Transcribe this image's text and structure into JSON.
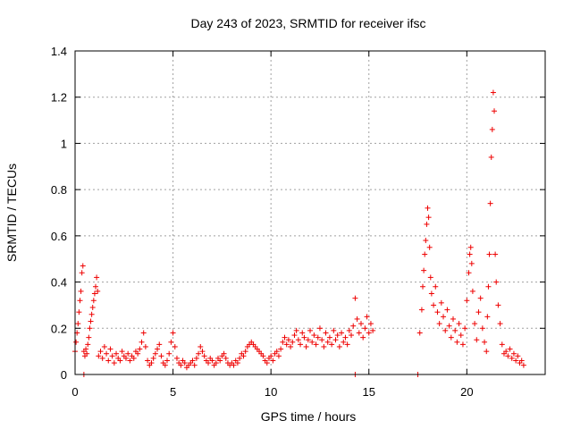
{
  "chart_data": {
    "type": "scatter",
    "title": "Day 243 of 2023, SRMTID for receiver ifsc",
    "xlabel": "GPS time / hours",
    "ylabel": "SRMTID / TECUs",
    "xlim": [
      0,
      24
    ],
    "ylim": [
      0,
      1.4
    ],
    "x_ticks": [
      0,
      5,
      10,
      15,
      20
    ],
    "x_tick_labels": [
      "0",
      "5",
      "10",
      "15",
      "20"
    ],
    "y_ticks": [
      0,
      0.2,
      0.4,
      0.6,
      0.8,
      1.0,
      1.2,
      1.4
    ],
    "y_tick_labels": [
      "0",
      "0.2",
      "0.4",
      "0.6",
      "0.8",
      "1",
      "1.2",
      "1.4"
    ],
    "grid": true,
    "marker": "+",
    "series": [
      {
        "name": "SRMTID",
        "color": "#ee0000",
        "points": [
          [
            0.0,
            0.1
          ],
          [
            0.05,
            0.14
          ],
          [
            0.1,
            0.18
          ],
          [
            0.15,
            0.22
          ],
          [
            0.2,
            0.27
          ],
          [
            0.25,
            0.32
          ],
          [
            0.3,
            0.36
          ],
          [
            0.35,
            0.44
          ],
          [
            0.4,
            0.47
          ],
          [
            0.45,
            0.1
          ],
          [
            0.5,
            0.08
          ],
          [
            0.55,
            0.11
          ],
          [
            0.6,
            0.09
          ],
          [
            0.65,
            0.13
          ],
          [
            0.7,
            0.16
          ],
          [
            0.75,
            0.2
          ],
          [
            0.8,
            0.23
          ],
          [
            0.85,
            0.26
          ],
          [
            0.9,
            0.29
          ],
          [
            0.95,
            0.32
          ],
          [
            1.0,
            0.35
          ],
          [
            1.05,
            0.38
          ],
          [
            1.1,
            0.42
          ],
          [
            1.15,
            0.36
          ],
          [
            1.2,
            0.08
          ],
          [
            1.3,
            0.1
          ],
          [
            1.4,
            0.07
          ],
          [
            1.5,
            0.12
          ],
          [
            1.6,
            0.09
          ],
          [
            1.7,
            0.06
          ],
          [
            1.8,
            0.11
          ],
          [
            1.9,
            0.08
          ],
          [
            2.0,
            0.05
          ],
          [
            2.1,
            0.09
          ],
          [
            2.2,
            0.07
          ],
          [
            2.3,
            0.06
          ],
          [
            2.4,
            0.1
          ],
          [
            2.5,
            0.08
          ],
          [
            2.6,
            0.07
          ],
          [
            2.7,
            0.09
          ],
          [
            2.8,
            0.06
          ],
          [
            2.9,
            0.08
          ],
          [
            3.0,
            0.07
          ],
          [
            3.1,
            0.1
          ],
          [
            3.2,
            0.09
          ],
          [
            3.3,
            0.11
          ],
          [
            3.4,
            0.14
          ],
          [
            3.5,
            0.18
          ],
          [
            3.6,
            0.12
          ],
          [
            3.7,
            0.06
          ],
          [
            3.8,
            0.04
          ],
          [
            3.9,
            0.05
          ],
          [
            4.0,
            0.07
          ],
          [
            4.1,
            0.09
          ],
          [
            4.2,
            0.11
          ],
          [
            4.3,
            0.13
          ],
          [
            4.4,
            0.08
          ],
          [
            4.5,
            0.05
          ],
          [
            4.6,
            0.04
          ],
          [
            4.7,
            0.06
          ],
          [
            4.8,
            0.09
          ],
          [
            4.9,
            0.14
          ],
          [
            5.0,
            0.18
          ],
          [
            5.1,
            0.12
          ],
          [
            5.2,
            0.07
          ],
          [
            5.3,
            0.05
          ],
          [
            5.4,
            0.04
          ],
          [
            5.5,
            0.06
          ],
          [
            5.6,
            0.05
          ],
          [
            5.7,
            0.03
          ],
          [
            5.8,
            0.04
          ],
          [
            5.9,
            0.05
          ],
          [
            6.0,
            0.06
          ],
          [
            6.1,
            0.04
          ],
          [
            6.2,
            0.07
          ],
          [
            6.3,
            0.09
          ],
          [
            6.4,
            0.12
          ],
          [
            6.5,
            0.1
          ],
          [
            6.6,
            0.08
          ],
          [
            6.7,
            0.06
          ],
          [
            6.8,
            0.05
          ],
          [
            6.9,
            0.07
          ],
          [
            7.0,
            0.06
          ],
          [
            7.1,
            0.04
          ],
          [
            7.2,
            0.05
          ],
          [
            7.3,
            0.07
          ],
          [
            7.4,
            0.06
          ],
          [
            7.5,
            0.08
          ],
          [
            7.6,
            0.09
          ],
          [
            7.7,
            0.07
          ],
          [
            7.8,
            0.05
          ],
          [
            7.9,
            0.04
          ],
          [
            8.0,
            0.05
          ],
          [
            8.1,
            0.04
          ],
          [
            8.2,
            0.06
          ],
          [
            8.3,
            0.05
          ],
          [
            8.4,
            0.07
          ],
          [
            8.5,
            0.09
          ],
          [
            8.6,
            0.08
          ],
          [
            8.7,
            0.1
          ],
          [
            8.8,
            0.12
          ],
          [
            8.9,
            0.13
          ],
          [
            9.0,
            0.14
          ],
          [
            9.1,
            0.13
          ],
          [
            9.2,
            0.12
          ],
          [
            9.3,
            0.11
          ],
          [
            9.4,
            0.1
          ],
          [
            9.5,
            0.09
          ],
          [
            9.6,
            0.08
          ],
          [
            9.7,
            0.06
          ],
          [
            9.8,
            0.05
          ],
          [
            9.9,
            0.07
          ],
          [
            10.0,
            0.08
          ],
          [
            10.1,
            0.06
          ],
          [
            10.2,
            0.09
          ],
          [
            10.3,
            0.1
          ],
          [
            10.4,
            0.08
          ],
          [
            10.5,
            0.11
          ],
          [
            10.6,
            0.14
          ],
          [
            10.7,
            0.16
          ],
          [
            10.8,
            0.13
          ],
          [
            10.9,
            0.15
          ],
          [
            11.0,
            0.12
          ],
          [
            11.1,
            0.14
          ],
          [
            11.2,
            0.17
          ],
          [
            11.3,
            0.19
          ],
          [
            11.4,
            0.15
          ],
          [
            11.5,
            0.13
          ],
          [
            11.6,
            0.18
          ],
          [
            11.7,
            0.16
          ],
          [
            11.8,
            0.12
          ],
          [
            11.9,
            0.15
          ],
          [
            12.0,
            0.19
          ],
          [
            12.1,
            0.14
          ],
          [
            12.2,
            0.17
          ],
          [
            12.3,
            0.13
          ],
          [
            12.4,
            0.16
          ],
          [
            12.5,
            0.2
          ],
          [
            12.6,
            0.15
          ],
          [
            12.7,
            0.12
          ],
          [
            12.8,
            0.18
          ],
          [
            12.9,
            0.14
          ],
          [
            13.0,
            0.16
          ],
          [
            13.1,
            0.13
          ],
          [
            13.2,
            0.19
          ],
          [
            13.3,
            0.15
          ],
          [
            13.4,
            0.17
          ],
          [
            13.5,
            0.12
          ],
          [
            13.6,
            0.18
          ],
          [
            13.7,
            0.14
          ],
          [
            13.8,
            0.16
          ],
          [
            13.9,
            0.13
          ],
          [
            14.0,
            0.19
          ],
          [
            14.1,
            0.17
          ],
          [
            14.2,
            0.21
          ],
          [
            14.3,
            0.33
          ],
          [
            14.4,
            0.24
          ],
          [
            14.5,
            0.18
          ],
          [
            14.6,
            0.22
          ],
          [
            14.7,
            0.16
          ],
          [
            14.8,
            0.2
          ],
          [
            14.9,
            0.25
          ],
          [
            15.0,
            0.18
          ],
          [
            15.1,
            0.22
          ],
          [
            15.2,
            0.19
          ],
          [
            17.6,
            0.18
          ],
          [
            17.7,
            0.28
          ],
          [
            17.75,
            0.38
          ],
          [
            17.8,
            0.45
          ],
          [
            17.85,
            0.52
          ],
          [
            17.9,
            0.58
          ],
          [
            17.95,
            0.65
          ],
          [
            18.0,
            0.72
          ],
          [
            18.05,
            0.68
          ],
          [
            18.1,
            0.55
          ],
          [
            18.15,
            0.42
          ],
          [
            18.2,
            0.35
          ],
          [
            18.3,
            0.3
          ],
          [
            18.4,
            0.38
          ],
          [
            18.5,
            0.27
          ],
          [
            18.6,
            0.22
          ],
          [
            18.7,
            0.31
          ],
          [
            18.8,
            0.25
          ],
          [
            18.9,
            0.19
          ],
          [
            19.0,
            0.28
          ],
          [
            19.1,
            0.21
          ],
          [
            19.2,
            0.16
          ],
          [
            19.3,
            0.24
          ],
          [
            19.4,
            0.19
          ],
          [
            19.5,
            0.14
          ],
          [
            19.6,
            0.22
          ],
          [
            19.7,
            0.17
          ],
          [
            19.8,
            0.13
          ],
          [
            19.9,
            0.2
          ],
          [
            20.0,
            0.32
          ],
          [
            20.1,
            0.44
          ],
          [
            20.15,
            0.52
          ],
          [
            20.2,
            0.55
          ],
          [
            20.25,
            0.48
          ],
          [
            20.3,
            0.36
          ],
          [
            20.4,
            0.22
          ],
          [
            20.5,
            0.15
          ],
          [
            20.6,
            0.27
          ],
          [
            20.7,
            0.33
          ],
          [
            20.8,
            0.2
          ],
          [
            20.9,
            0.14
          ],
          [
            21.0,
            0.1
          ],
          [
            21.05,
            0.25
          ],
          [
            21.1,
            0.38
          ],
          [
            21.15,
            0.52
          ],
          [
            21.2,
            0.74
          ],
          [
            21.25,
            0.94
          ],
          [
            21.3,
            1.06
          ],
          [
            21.35,
            1.22
          ],
          [
            21.4,
            1.14
          ],
          [
            21.45,
            0.52
          ],
          [
            21.5,
            0.4
          ],
          [
            21.6,
            0.3
          ],
          [
            21.7,
            0.22
          ],
          [
            21.8,
            0.13
          ],
          [
            21.9,
            0.09
          ],
          [
            22.0,
            0.1
          ],
          [
            22.1,
            0.08
          ],
          [
            22.2,
            0.11
          ],
          [
            22.3,
            0.07
          ],
          [
            22.4,
            0.09
          ],
          [
            22.5,
            0.06
          ],
          [
            22.6,
            0.08
          ],
          [
            22.7,
            0.05
          ],
          [
            22.8,
            0.06
          ],
          [
            22.9,
            0.04
          ],
          [
            0.45,
            0.0
          ],
          [
            14.3,
            0.0
          ],
          [
            17.5,
            0.0
          ]
        ]
      }
    ]
  }
}
